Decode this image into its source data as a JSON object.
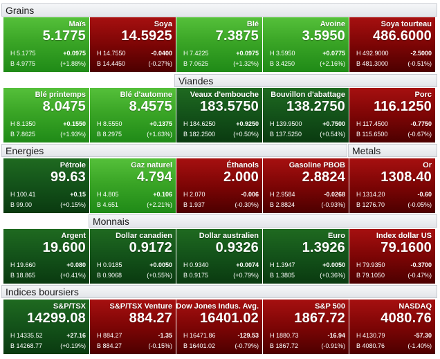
{
  "sections": [
    {
      "title": "Grains",
      "items": [
        {
          "name": "Maïs",
          "price": "5.1775",
          "high": "H 5.1775",
          "low": "B 4.9775",
          "change": "+0.0975",
          "pct": "(+1.88%)",
          "trend": "up"
        },
        {
          "name": "Soya",
          "price": "14.5925",
          "high": "H 14.7550",
          "low": "B 14.4450",
          "change": "-0.0400",
          "pct": "(-0.27%)",
          "trend": "down"
        },
        {
          "name": "Blé",
          "price": "7.3875",
          "high": "H 7.4225",
          "low": "B 7.0625",
          "change": "+0.0975",
          "pct": "(+1.32%)",
          "trend": "up"
        },
        {
          "name": "Avoine",
          "price": "3.5950",
          "high": "H 3.5950",
          "low": "B 3.4250",
          "change": "+0.0775",
          "pct": "(+2.16%)",
          "trend": "up"
        },
        {
          "name": "Soya tourteau",
          "price": "486.6000",
          "high": "H 492.9000",
          "low": "B 481.3000",
          "change": "-2.5000",
          "pct": "(-0.51%)",
          "trend": "down"
        }
      ]
    },
    {
      "title": "Viandes",
      "items": [
        {
          "name": "Blé printemps",
          "price": "8.0475",
          "high": "H 8.1350",
          "low": "B 7.8625",
          "change": "+0.1550",
          "pct": "(+1.93%)",
          "trend": "up"
        },
        {
          "name": "Blé d'automne",
          "price": "8.4575",
          "high": "H 8.5550",
          "low": "B 8.2975",
          "change": "+0.1375",
          "pct": "(+1.63%)",
          "trend": "up"
        },
        {
          "name": "Veaux d'embouche",
          "price": "183.5750",
          "high": "H 184.6250",
          "low": "B 182.2500",
          "change": "+0.9250",
          "pct": "(+0.50%)",
          "trend": "up"
        },
        {
          "name": "Bouvillon d'abattage",
          "price": "138.2750",
          "high": "H 139.9500",
          "low": "B 137.5250",
          "change": "+0.7500",
          "pct": "(+0.54%)",
          "trend": "up"
        },
        {
          "name": "Porc",
          "price": "116.1250",
          "high": "H 117.4500",
          "low": "B 115.6500",
          "change": "-0.7750",
          "pct": "(-0.67%)",
          "trend": "down"
        }
      ]
    },
    {
      "title": "Energies",
      "title_right": "Metals",
      "items": [
        {
          "name": "Pétrole",
          "price": "99.63",
          "high": "H 100.41",
          "low": "B 99.00",
          "change": "+0.15",
          "pct": "(+0.15%)",
          "trend": "up"
        },
        {
          "name": "Gaz naturel",
          "price": "4.794",
          "high": "H 4.805",
          "low": "B 4.651",
          "change": "+0.106",
          "pct": "(+2.21%)",
          "trend": "up"
        },
        {
          "name": "Éthanols",
          "price": "2.000",
          "high": "H 2.070",
          "low": "B 1.937",
          "change": "-0.006",
          "pct": "(-0.30%)",
          "trend": "down"
        },
        {
          "name": "Gasoline PBOB",
          "price": "2.8824",
          "high": "H 2.9584",
          "low": "B 2.8824",
          "change": "-0.0268",
          "pct": "(-0.93%)",
          "trend": "down"
        },
        {
          "name": "Or",
          "price": "1308.40",
          "high": "H 1314.20",
          "low": "B 1276.70",
          "change": "-0.60",
          "pct": "(-0.05%)",
          "trend": "down"
        }
      ]
    },
    {
      "title": "Monnais",
      "items": [
        {
          "name": "Argent",
          "price": "19.600",
          "high": "H 19.660",
          "low": "B 18.865",
          "change": "+0.080",
          "pct": "(+0.41%)",
          "trend": "up"
        },
        {
          "name": "Dollar canadien",
          "price": "0.9172",
          "high": "H 0.9185",
          "low": "B 0.9068",
          "change": "+0.0050",
          "pct": "(+0.55%)",
          "trend": "up"
        },
        {
          "name": "Dollar australien",
          "price": "0.9326",
          "high": "H 0.9340",
          "low": "B 0.9175",
          "change": "+0.0074",
          "pct": "(+0.79%)",
          "trend": "up"
        },
        {
          "name": "Euro",
          "price": "1.3926",
          "high": "H 1.3947",
          "low": "B 1.3805",
          "change": "+0.0050",
          "pct": "(+0.36%)",
          "trend": "up"
        },
        {
          "name": "Index dollar US",
          "price": "79.1600",
          "high": "H 79.9350",
          "low": "B 79.1050",
          "change": "-0.3700",
          "pct": "(-0.47%)",
          "trend": "down"
        }
      ]
    },
    {
      "title": "Indices boursiers",
      "items": [
        {
          "name": "S&P/TSX",
          "price": "14299.08",
          "high": "H 14335.52",
          "low": "B 14268.77",
          "change": "+27.16",
          "pct": "(+0.19%)",
          "trend": "up"
        },
        {
          "name": "S&P/TSX Venture",
          "price": "884.27",
          "high": "H 884.27",
          "low": "B 884.27",
          "change": "-1.35",
          "pct": "(-0.15%)",
          "trend": "down"
        },
        {
          "name": "Dow Jones Indus. Avg.",
          "price": "16401.02",
          "high": "H 16471.86",
          "low": "B 16401.02",
          "change": "-129.53",
          "pct": "(-0.79%)",
          "trend": "down"
        },
        {
          "name": "S&P 500",
          "price": "1867.72",
          "high": "H 1880.73",
          "low": "B 1867.72",
          "change": "-16.94",
          "pct": "(-0.91%)",
          "trend": "down"
        },
        {
          "name": "NASDAQ",
          "price": "4080.76",
          "high": "H 4130.79",
          "low": "B 4080.76",
          "change": "-57.30",
          "pct": "(-1.40%)",
          "trend": "down"
        }
      ]
    }
  ],
  "colors": {
    "up_bright": "#3aa526",
    "up_dark": "#14541a",
    "down": "#7d0505",
    "header_bg": "#e9ebee",
    "header_text": "#1a1a1a"
  }
}
